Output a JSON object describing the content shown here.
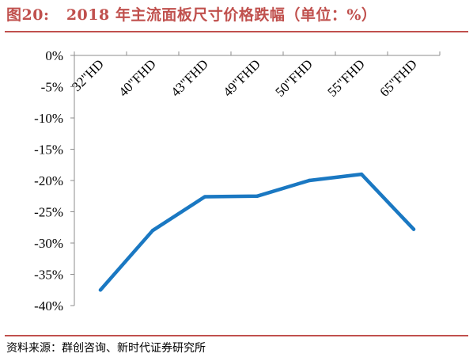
{
  "figure": {
    "label": "图20:",
    "title": "2018 年主流面板尺寸价格跌幅（单位：%）"
  },
  "source": "资料来源：群创咨询、新时代证券研究所",
  "chart_data": {
    "type": "line",
    "title": "2018 年主流面板尺寸价格跌幅（单位：%）",
    "xlabel": "",
    "ylabel": "",
    "categories": [
      "32\"HD",
      "40\"FHD",
      "43\"FHD",
      "49\"FHD",
      "50\"FHD",
      "55\"FHD",
      "65\"FHD"
    ],
    "series": [
      {
        "values": [
          -37.5,
          -28,
          -22.6,
          -22.5,
          -20,
          -19,
          -27.8
        ],
        "color": "#1a78c2"
      }
    ],
    "ylim": [
      -40,
      0
    ],
    "yticks": [
      0,
      -5,
      -10,
      -15,
      -20,
      -25,
      -30,
      -35,
      -40
    ],
    "ytick_labels": [
      "0%",
      "-5%",
      "-10%",
      "-15%",
      "-20%",
      "-25%",
      "-30%",
      "-35%",
      "-40%"
    ],
    "grid": false,
    "legend": "none"
  }
}
